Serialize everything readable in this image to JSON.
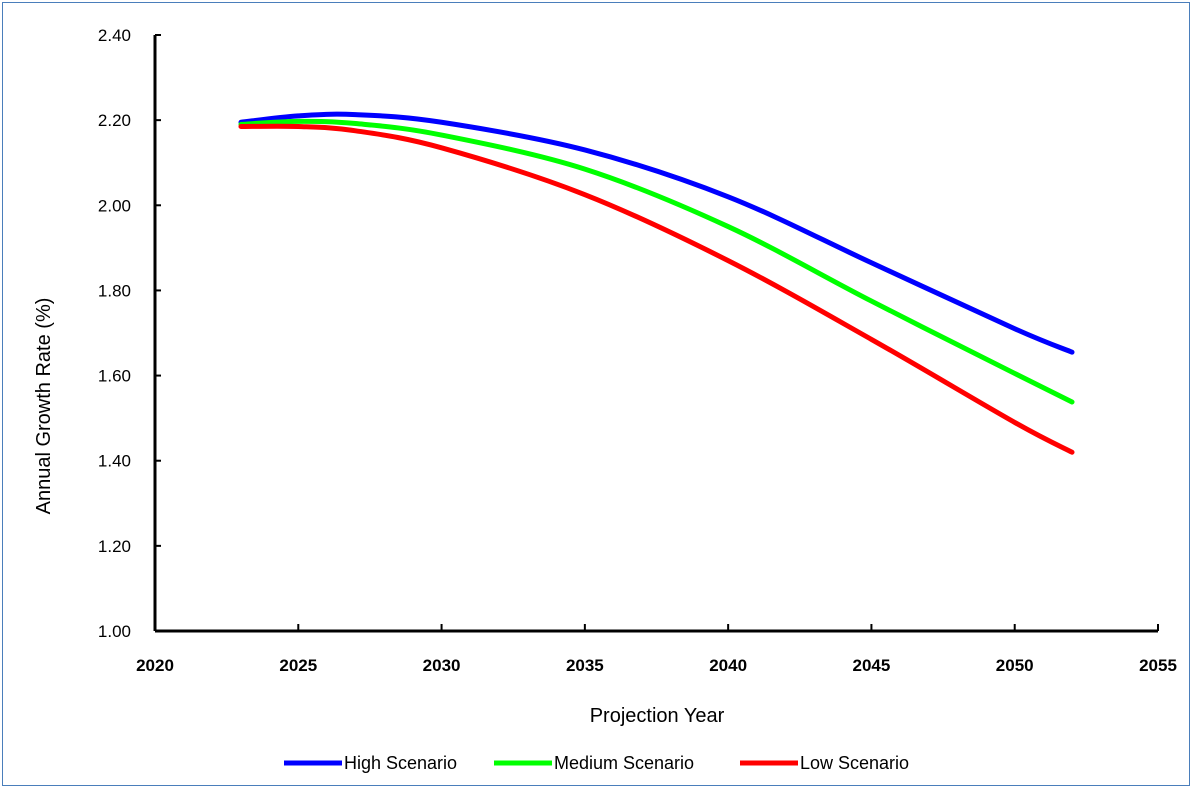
{
  "chart_data": {
    "type": "line",
    "title": "",
    "xlabel": "Projection Year",
    "ylabel": "Annual Growth Rate (%)",
    "xlim": [
      2020,
      2055
    ],
    "ylim": [
      1.0,
      2.4
    ],
    "x_ticks": [
      "2020",
      "2025",
      "2030",
      "2035",
      "2040",
      "2045",
      "2050",
      "2055"
    ],
    "y_ticks": [
      "1.00",
      "1.20",
      "1.40",
      "1.60",
      "1.80",
      "2.00",
      "2.20",
      "2.40"
    ],
    "grid": false,
    "legend_position": "bottom",
    "x": [
      2023,
      2025,
      2027,
      2030,
      2035,
      2040,
      2045,
      2050,
      2052
    ],
    "series": [
      {
        "name": "High Scenario",
        "color": "#0000ff",
        "values": [
          2.195,
          2.21,
          2.213,
          2.195,
          2.13,
          2.02,
          1.865,
          1.71,
          1.655
        ]
      },
      {
        "name": "Medium Scenario",
        "color": "#00ff00",
        "values": [
          2.19,
          2.197,
          2.192,
          2.165,
          2.085,
          1.95,
          1.775,
          1.605,
          1.538
        ]
      },
      {
        "name": "Low Scenario",
        "color": "#ff0000",
        "values": [
          2.185,
          2.185,
          2.175,
          2.135,
          2.025,
          1.87,
          1.685,
          1.49,
          1.42
        ]
      }
    ]
  }
}
